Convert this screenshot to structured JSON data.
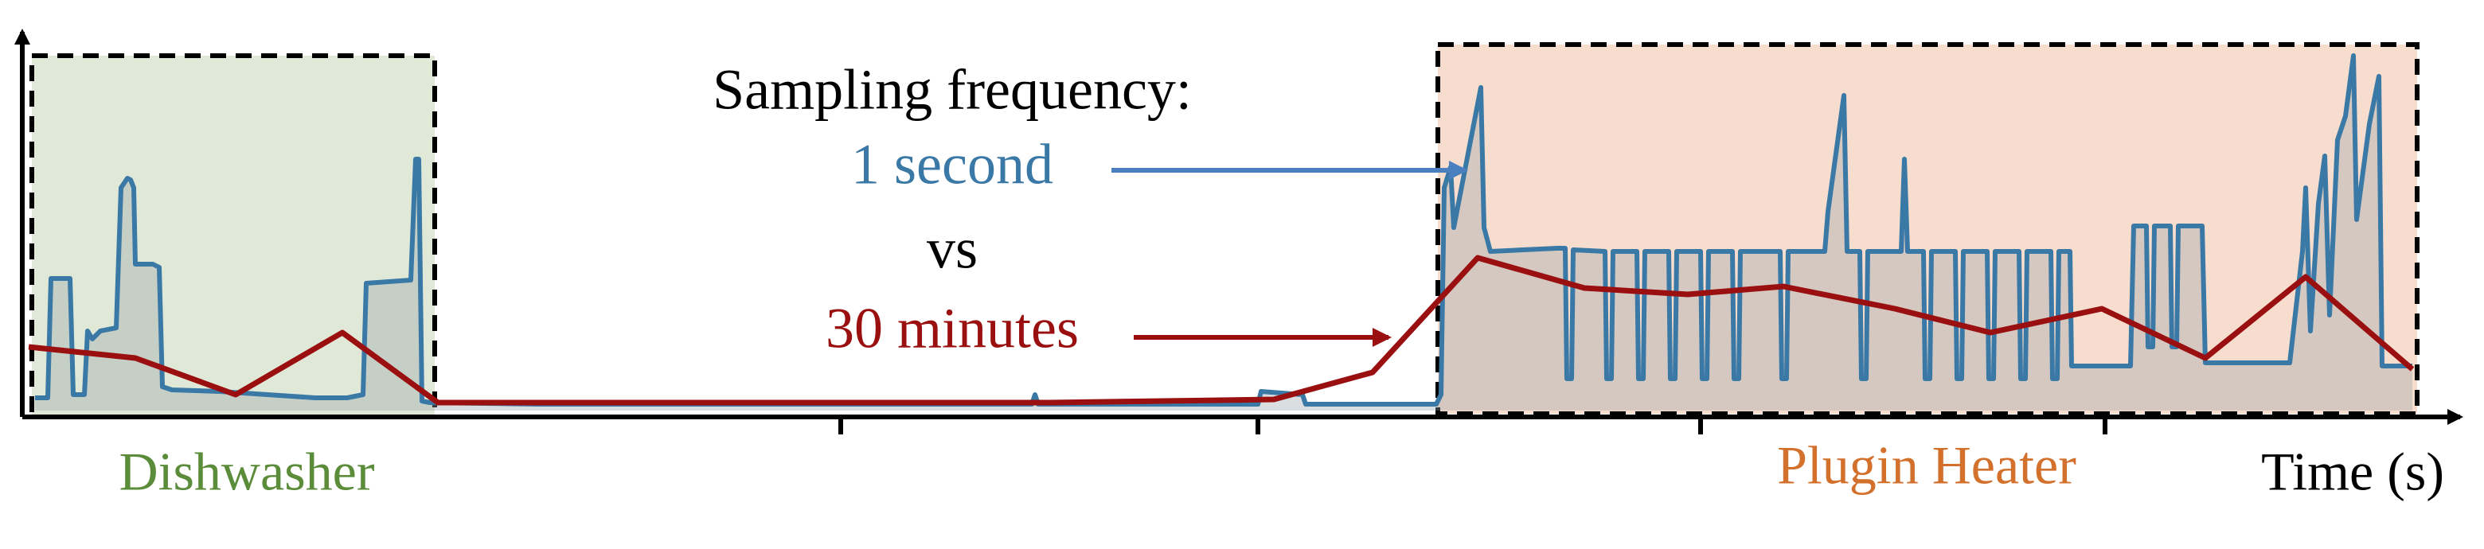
{
  "chart_data": {
    "type": "line",
    "annotations": [
      "Sampling frequency:",
      "vs"
    ],
    "regions": [
      {
        "label": "Dishwasher",
        "color": "#5b8c3a"
      },
      {
        "label": "Plugin Heater",
        "color": "#d2702c"
      }
    ],
    "xlabel": "Time (s)",
    "xlim": [
      0,
      1512
    ],
    "ylim": [
      0,
      228
    ],
    "xticks": [
      510,
      772,
      1050,
      1304
    ],
    "series": [
      {
        "name": "1 second",
        "color": "#3a78a6",
        "x": [
          4,
          12,
          14,
          26,
          28,
          35,
          37,
          40,
          45,
          55,
          58,
          62,
          64,
          66,
          67,
          78,
          82,
          84,
          90,
          120,
          150,
          180,
          200,
          210,
          212,
          240,
          243,
          245,
          247,
          252,
          320,
          630,
          632,
          634,
          772,
          774,
          800,
          802,
          884,
          887,
          889,
          893,
          895,
          912,
          914,
          918,
          960,
          965,
          966,
          969,
          970,
          990,
          991,
          994,
          995,
          1010,
          1011,
          1014,
          1015,
          1030,
          1031,
          1034,
          1035,
          1050,
          1051,
          1054,
          1055,
          1070,
          1071,
          1074,
          1075,
          1100,
          1101,
          1104,
          1105,
          1128,
          1130,
          1140,
          1142,
          1150,
          1151,
          1154,
          1155,
          1176,
          1178,
          1180,
          1190,
          1191,
          1194,
          1195,
          1210,
          1211,
          1214,
          1215,
          1230,
          1231,
          1234,
          1235,
          1250,
          1251,
          1254,
          1255,
          1270,
          1271,
          1274,
          1275,
          1282,
          1283,
          1320,
          1322,
          1330,
          1331,
          1334,
          1335,
          1345,
          1346,
          1349,
          1350,
          1365,
          1367,
          1420,
          1428,
          1430,
          1433,
          1438,
          1442,
          1445,
          1450,
          1455,
          1460,
          1462,
          1470,
          1476,
          1478,
          1497
        ],
        "values": [
          8,
          8,
          83,
          83,
          10,
          10,
          50,
          45,
          50,
          52,
          140,
          146,
          145,
          140,
          92,
          92,
          90,
          15,
          13,
          12,
          10,
          8,
          8,
          10,
          80,
          82,
          158,
          158,
          6,
          5,
          4,
          4,
          10,
          4,
          4,
          12,
          10,
          4,
          4,
          10,
          140,
          153,
          115,
          203,
          115,
          100,
          102,
          102,
          20,
          20,
          101,
          100,
          20,
          20,
          100,
          100,
          20,
          20,
          100,
          100,
          20,
          20,
          100,
          100,
          20,
          20,
          100,
          100,
          20,
          20,
          100,
          100,
          20,
          20,
          100,
          100,
          125,
          198,
          100,
          100,
          20,
          20,
          100,
          100,
          158,
          100,
          100,
          20,
          20,
          100,
          100,
          20,
          20,
          100,
          100,
          20,
          20,
          100,
          100,
          20,
          20,
          100,
          100,
          20,
          20,
          100,
          100,
          28,
          28,
          116,
          116,
          40,
          40,
          116,
          116,
          40,
          40,
          116,
          116,
          30,
          30,
          100,
          140,
          50,
          130,
          160,
          60,
          170,
          185,
          223,
          120,
          180,
          210,
          28,
          28
        ]
      },
      {
        "name": "30 minutes",
        "color": "#9a1010",
        "x": [
          0,
          67,
          130,
          197,
          257,
          382,
          642,
          782,
          844,
          910,
          977,
          1042,
          1102,
          1172,
          1232,
          1302,
          1367,
          1430,
          1497
        ],
        "values": [
          40,
          33,
          10,
          49,
          5,
          5,
          5,
          7,
          24,
          96,
          77,
          73,
          78,
          64,
          49,
          64,
          33,
          84,
          26
        ]
      }
    ]
  }
}
